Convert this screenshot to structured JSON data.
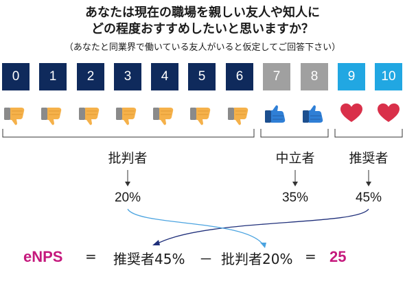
{
  "title": {
    "line1": "あなたは現在の職場を親しい友人や知人に",
    "line2": "どの程度おすすめしたいと思いますか？",
    "subtitle": "（あなたと同業界で働いている友人がいると仮定してご回答下さい）"
  },
  "scale": {
    "scores": [
      "0",
      "1",
      "2",
      "3",
      "4",
      "5",
      "6",
      "7",
      "8",
      "9",
      "10"
    ],
    "colors": [
      "#0f2a5c",
      "#0f2a5c",
      "#0f2a5c",
      "#0f2a5c",
      "#0f2a5c",
      "#0f2a5c",
      "#0f2a5c",
      "#a0a0a0",
      "#a0a0a0",
      "#21a7e2",
      "#21a7e2"
    ],
    "icons": [
      "thumbs-down-icon",
      "thumbs-down-icon",
      "thumbs-down-icon",
      "thumbs-down-icon",
      "thumbs-down-icon",
      "thumbs-down-icon",
      "thumbs-down-icon",
      "thumbs-up-icon",
      "thumbs-up-icon",
      "heart-icon",
      "heart-icon"
    ]
  },
  "groups": {
    "detractors": {
      "label": "批判者",
      "pct": "20%"
    },
    "passives": {
      "label": "中立者",
      "pct": "35%"
    },
    "promoters": {
      "label": "推奨者",
      "pct": "45%"
    }
  },
  "formula": {
    "name": "eNPS",
    "eq1": "=",
    "term1": "推奨者45%",
    "minus": "－",
    "term2": "批判者20%",
    "eq2": "=",
    "result": "25"
  },
  "colors": {
    "detractor": "#0f2a5c",
    "passive": "#a0a0a0",
    "promoter": "#21a7e2",
    "accent": "#c5197d",
    "thumb_down": "#f5b14a",
    "thumb_up": "#2f7fd6",
    "heart": "#d9304a"
  }
}
